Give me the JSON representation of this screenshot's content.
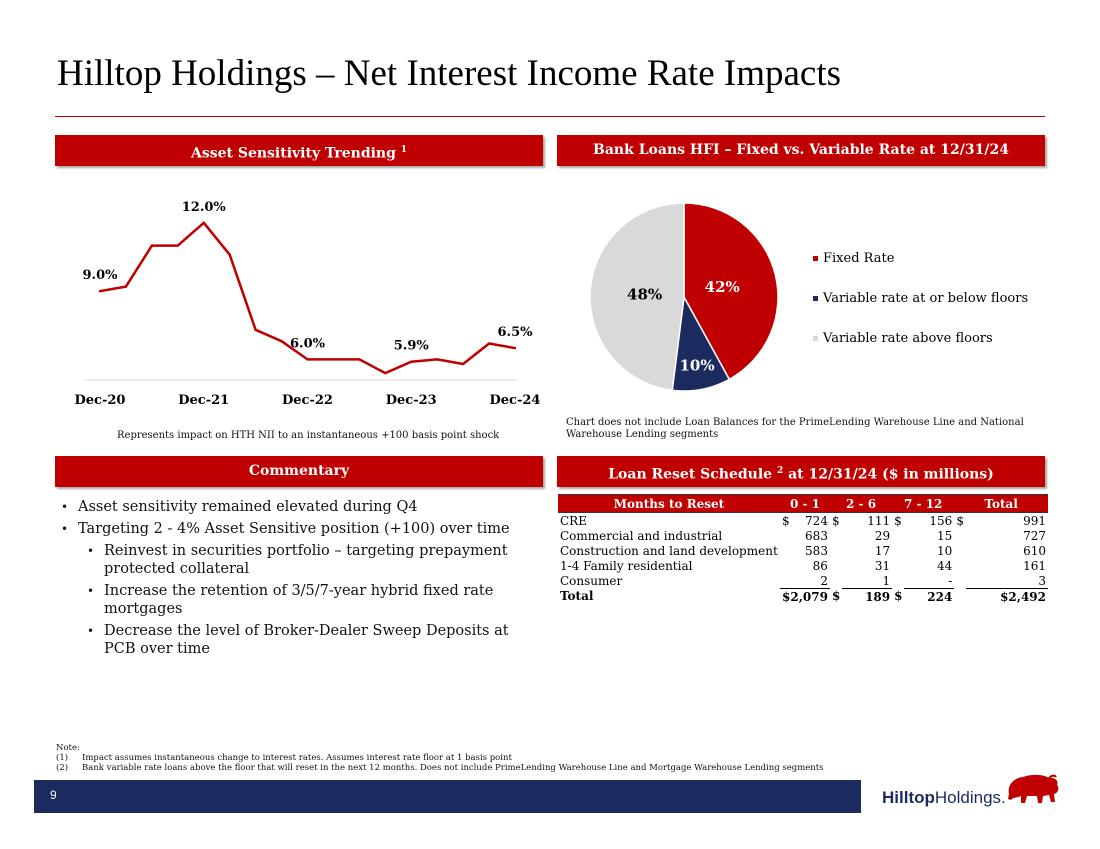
{
  "title": "Hilltop Holdings – Net Interest Income Rate Impacts",
  "sections": {
    "asset_sensitivity": {
      "title": "Asset Sensitivity Trending",
      "sup": "1",
      "caption": "Represents impact on HTH NII to an instantaneous +100 basis point shock"
    },
    "bank_loans": {
      "title": "Bank Loans HFI – Fixed vs. Variable Rate at 12/31/24",
      "caption_line1": "Chart does not include Loan Balances for the PrimeLending Warehouse Line and National",
      "caption_line2": "Warehouse Lending segments"
    },
    "commentary": {
      "title": "Commentary"
    },
    "loan_reset": {
      "title_pre": "Loan Reset Schedule",
      "sup": "2",
      "title_post": "at 12/31/24 ($ in millions)"
    }
  },
  "chart_data": [
    {
      "type": "line",
      "title": "Asset Sensitivity Trending",
      "x": [
        "Dec-20",
        "Mar-21",
        "Jun-21",
        "Sep-21",
        "Dec-21",
        "Mar-22",
        "Jun-22",
        "Sep-22",
        "Dec-22",
        "Mar-23",
        "Jun-23",
        "Sep-23",
        "Dec-23",
        "Mar-24",
        "Jun-24",
        "Sep-24",
        "Dec-24"
      ],
      "values": [
        9.0,
        9.2,
        11.0,
        11.0,
        12.0,
        10.6,
        7.3,
        6.8,
        6.0,
        6.0,
        6.0,
        5.4,
        5.9,
        6.0,
        5.8,
        6.7,
        6.5
      ],
      "tick_labels": [
        "Dec-20",
        "Dec-21",
        "Dec-22",
        "Dec-23",
        "Dec-24"
      ],
      "data_labels": [
        {
          "index": 0,
          "text": "9.0%"
        },
        {
          "index": 4,
          "text": "12.0%"
        },
        {
          "index": 8,
          "text": "6.0%"
        },
        {
          "index": 12,
          "text": "5.9%"
        },
        {
          "index": 16,
          "text": "6.5%"
        }
      ],
      "ylim": [
        4,
        13
      ],
      "color": "#c00000"
    },
    {
      "type": "pie",
      "title": "Bank Loans HFI – Fixed vs. Variable Rate at 12/31/24",
      "slices": [
        {
          "name": "Fixed Rate",
          "value": 42,
          "label": "42%",
          "color": "#c00000"
        },
        {
          "name": "Variable rate at or below floors",
          "value": 10,
          "label": "10%",
          "color": "#1b2a5f"
        },
        {
          "name": "Variable rate above floors",
          "value": 48,
          "label": "48%",
          "color": "#d9d9d9"
        }
      ]
    }
  ],
  "commentary": {
    "bullets": [
      "Asset sensitivity remained elevated during Q4",
      "Targeting 2 - 4% Asset Sensitive position (+100) over time"
    ],
    "sub_bullets": [
      "Reinvest in securities portfolio – targeting prepayment protected collateral",
      "Increase the retention of 3/5/7-year hybrid fixed rate mortgages",
      "Decrease the level of Broker-Dealer Sweep Deposits at PCB over time"
    ]
  },
  "loan_table": {
    "headers": [
      "Months to Reset",
      "0 - 1",
      "2 - 6",
      "7 - 12",
      "Total"
    ],
    "rows": [
      {
        "label": "CRE",
        "c1": "$",
        "v1": "724",
        "c2": "$",
        "v2": "111",
        "c3": "$",
        "v3": "156",
        "c4": "$",
        "v4": "991"
      },
      {
        "label": "Commercial and industrial",
        "c1": "",
        "v1": "683",
        "c2": "",
        "v2": "29",
        "c3": "",
        "v3": "15",
        "c4": "",
        "v4": "727"
      },
      {
        "label": "Construction and land development",
        "c1": "",
        "v1": "583",
        "c2": "",
        "v2": "17",
        "c3": "",
        "v3": "10",
        "c4": "",
        "v4": "610"
      },
      {
        "label": "1-4 Family residential",
        "c1": "",
        "v1": "86",
        "c2": "",
        "v2": "31",
        "c3": "",
        "v3": "44",
        "c4": "",
        "v4": "161"
      },
      {
        "label": "Consumer",
        "c1": "",
        "v1": "2",
        "c2": "",
        "v2": "1",
        "c3": "",
        "v3": "-",
        "c4": "",
        "v4": "3"
      }
    ],
    "total": {
      "label": "Total",
      "v1": "$2,079",
      "c2": "$",
      "v2": "189",
      "c3": "$",
      "v3": "224",
      "v4": "$2,492"
    }
  },
  "notes": {
    "heading": "Note:",
    "n1_num": "(1)",
    "n1": "Impact assumes instantaneous change to interest rates. Assumes interest rate floor at 1 basis point",
    "n2_num": "(2)",
    "n2": "Bank variable rate loans above the floor that will reset in the next 12 months. Does not include PrimeLending Warehouse Line and Mortgage Warehouse Lending segments"
  },
  "footer": {
    "page_number": "9",
    "logo_bold": "Hilltop",
    "logo_rest": "Holdings."
  },
  "colors": {
    "accent": "#c00000",
    "navy": "#1b2a5f",
    "light_gray": "#d9d9d9"
  }
}
